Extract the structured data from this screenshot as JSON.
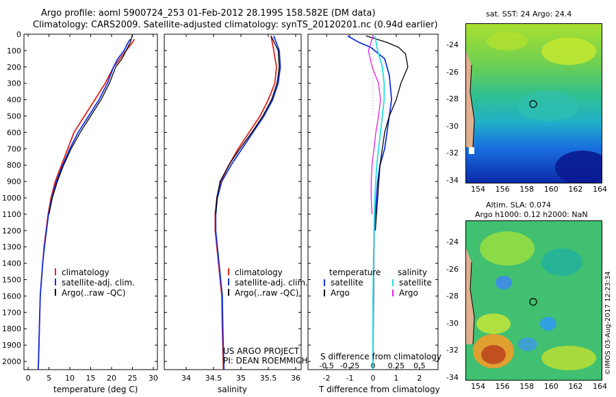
{
  "header": {
    "line1": "Argo profile: aoml 5900724_253 01-Feb-2012 28.199S 158.582E (DM data)",
    "line2": "Climatology: CARS2009. Satellite-adjusted climatology: synTS_20120201.nc (0.94d earlier)"
  },
  "panels": {
    "temperature": {
      "xlabel": "temperature (deg C)",
      "xticks": [
        "0",
        "5",
        "10",
        "15",
        "20",
        "25",
        "30"
      ],
      "legend": [
        "climatology",
        "satellite-adj. clim.",
        "Argo(..raw -QC)"
      ]
    },
    "salinity": {
      "xlabel": "salinity",
      "xticks": [
        "34",
        "34.5",
        "35",
        "35.5",
        "36"
      ],
      "legend": [
        "climatology",
        "satellite-adj. clim.",
        "Argo(..raw -QC)"
      ],
      "project_line1": "US ARGO PROJECT",
      "project_line2": "PI: DEAN ROEMMICH"
    },
    "difference": {
      "xlabel_top": "S difference from climatology",
      "top_ticks": [
        "-0.5",
        "-0.25",
        "0",
        "0.25",
        "0.5"
      ],
      "xlabel": "T difference from climatology",
      "xticks": [
        "-2",
        "-1",
        "0",
        "1",
        "2"
      ],
      "legend_temp_head": "temperature",
      "legend_sal_head": "salinity",
      "legend_temp": [
        "satellite",
        "Argo"
      ],
      "legend_sal": [
        "satellite",
        "Argo"
      ]
    }
  },
  "yticks": [
    "0",
    "100",
    "200",
    "300",
    "400",
    "500",
    "600",
    "700",
    "800",
    "900",
    "1000",
    "1100",
    "1200",
    "1300",
    "1400",
    "1500",
    "1600",
    "1700",
    "1800",
    "1900",
    "2000"
  ],
  "colors": {
    "climatology": "#e0201a",
    "satellite": "#1030e0",
    "argo": "#000000",
    "sal_satellite": "#20e0e0",
    "sal_argo": "#e020e0"
  },
  "maps": {
    "sst": {
      "label": "sat. SST: 24 Argo: 24.4",
      "yticks": [
        "-24",
        "-26",
        "-28",
        "-30",
        "-32",
        "-34"
      ],
      "xticks": [
        "154",
        "156",
        "158",
        "160",
        "162",
        "164"
      ]
    },
    "sla": {
      "label1": "Altim. SLA: 0.074",
      "label2": "Argo h1000: 0.12 h2000: NaN",
      "yticks": [
        "-24",
        "-26",
        "-28",
        "-30",
        "-32",
        "-34"
      ],
      "xticks": [
        "154",
        "156",
        "158",
        "160",
        "162",
        "164"
      ]
    },
    "credit": "©IMOS 03-Aug-2017 12:23:34"
  },
  "chart_data": [
    {
      "type": "line",
      "panel": "temperature",
      "xlabel": "temperature (deg C)",
      "ylabel": "",
      "xlim": [
        -1,
        31
      ],
      "ylim": [
        2050,
        0
      ],
      "series": [
        {
          "name": "climatology",
          "x": [
            25.5,
            25,
            23.5,
            22,
            20.5,
            18.5,
            16,
            13.5,
            11,
            9.5,
            8,
            6.5,
            5.5,
            4.8,
            4.3,
            3.8,
            3.5,
            3.2,
            2.9,
            2.7,
            2.5,
            2.4
          ],
          "y": [
            30,
            50,
            100,
            150,
            200,
            300,
            400,
            500,
            600,
            700,
            800,
            900,
            1000,
            1100,
            1200,
            1300,
            1400,
            1500,
            1600,
            1800,
            2000,
            2050
          ]
        },
        {
          "name": "satellite-adj. clim.",
          "x": [
            24.5,
            24,
            23,
            21.5,
            20.5,
            19,
            17,
            14.5,
            12,
            10,
            8.3,
            6.8,
            5.7,
            4.9,
            4.4,
            3.9,
            3.5,
            3.2,
            2.9,
            2.7,
            2.5,
            2.4
          ],
          "y": [
            30,
            50,
            100,
            150,
            200,
            300,
            400,
            500,
            600,
            700,
            800,
            900,
            1000,
            1100,
            1200,
            1300,
            1400,
            1500,
            1600,
            1800,
            2000,
            2050
          ]
        },
        {
          "name": "Argo(..raw -QC)",
          "x": [
            25,
            24.5,
            23.5,
            22.5,
            21,
            19.5,
            17.5,
            15,
            12.5,
            10.3,
            8.5,
            7,
            5.8,
            5
          ],
          "y": [
            5,
            50,
            100,
            150,
            200,
            300,
            400,
            500,
            600,
            700,
            800,
            900,
            1000,
            1100
          ]
        }
      ]
    },
    {
      "type": "line",
      "panel": "salinity",
      "xlabel": "salinity",
      "ylabel": "",
      "xlim": [
        33.6,
        36.1
      ],
      "ylim": [
        2050,
        0
      ],
      "series": [
        {
          "name": "climatology",
          "x": [
            35.55,
            35.6,
            35.65,
            35.62,
            35.5,
            35.35,
            35.15,
            34.95,
            34.78,
            34.63,
            34.56,
            34.53,
            34.53,
            34.56,
            34.59,
            34.62,
            34.65,
            34.66,
            34.68
          ],
          "y": [
            10,
            100,
            200,
            300,
            400,
            500,
            600,
            700,
            800,
            900,
            1000,
            1100,
            1200,
            1300,
            1400,
            1500,
            1600,
            1800,
            2050
          ]
        },
        {
          "name": "satellite-adj. clim.",
          "x": [
            35.6,
            35.7,
            35.72,
            35.68,
            35.58,
            35.42,
            35.22,
            35.02,
            34.82,
            34.65,
            34.57,
            34.54,
            34.54,
            34.57,
            34.6,
            34.63,
            34.66,
            34.67,
            34.69
          ],
          "y": [
            10,
            100,
            200,
            300,
            400,
            500,
            600,
            700,
            800,
            900,
            1000,
            1100,
            1200,
            1300,
            1400,
            1500,
            1600,
            1800,
            2050
          ]
        },
        {
          "name": "Argo(..raw -QC)",
          "x": [
            35.55,
            35.68,
            35.7,
            35.66,
            35.56,
            35.4,
            35.2,
            34.98,
            34.78,
            34.62,
            34.56,
            34.54
          ],
          "y": [
            10,
            100,
            200,
            300,
            400,
            500,
            600,
            700,
            800,
            900,
            1000,
            1100
          ]
        }
      ]
    },
    {
      "type": "line",
      "panel": "difference",
      "xlabel": "T difference from climatology",
      "xlim": [
        -2.8,
        2.8
      ],
      "ylim": [
        2050,
        0
      ],
      "series": [
        {
          "name": "temperature satellite",
          "x": [
            -1.1,
            -0.6,
            -0.1,
            0.5,
            0.7,
            0.8,
            0.7,
            0.6,
            0.5,
            0.3,
            0.2,
            0.15,
            0.1,
            0.05,
            0.03,
            0.02,
            0.01,
            0.0,
            0.0
          ],
          "y": [
            10,
            50,
            80,
            150,
            250,
            400,
            500,
            600,
            700,
            800,
            900,
            1000,
            1100,
            1200,
            1400,
            1600,
            1800,
            2000,
            2050
          ]
        },
        {
          "name": "temperature Argo",
          "x": [
            -0.3,
            0.6,
            1.1,
            1.4,
            1.5,
            1.2,
            1.0,
            0.7,
            0.5,
            0.4,
            0.3,
            0.25,
            0.2,
            0.15,
            0.1
          ],
          "y": [
            10,
            50,
            80,
            120,
            200,
            300,
            400,
            500,
            600,
            700,
            800,
            900,
            1000,
            1100,
            1200
          ]
        },
        {
          "name": "salinity satellite",
          "x": [
            0.02,
            0.05,
            0.1,
            0.12,
            0.12,
            0.1,
            0.08,
            0.06,
            0.04,
            0.02,
            0.01,
            0.0,
            0.0
          ],
          "y": [
            10,
            100,
            200,
            300,
            400,
            500,
            600,
            700,
            800,
            1000,
            1200,
            1600,
            2050
          ]
        },
        {
          "name": "salinity Argo",
          "x": [
            0.0,
            -0.05,
            -0.01,
            0.06,
            0.08,
            0.06,
            0.03,
            0.01,
            -0.01,
            -0.02,
            -0.02,
            -0.01
          ],
          "y": [
            10,
            100,
            200,
            300,
            400,
            500,
            600,
            700,
            800,
            900,
            1000,
            1100
          ]
        }
      ]
    }
  ]
}
